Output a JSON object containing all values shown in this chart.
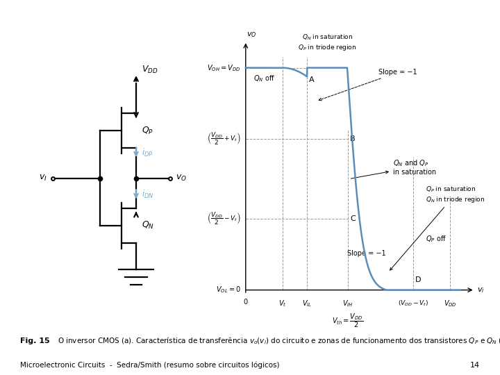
{
  "bg_color": "#ffffff",
  "footer": "Microelectronic Circuits  -  Sedra/Smith (resumo sobre circuitos lógicos)",
  "page_number": "14",
  "circuit": {
    "vdd_label": "$V_{DD}$",
    "qp_label": "$Q_P$",
    "qn_label": "$Q_N$",
    "vi_label": "$v_I$",
    "vo_label": "$v_O$",
    "idp_label": "$i_{DP}$",
    "idn_label": "$i_{DN}$",
    "arrow_color": "#7aabcc"
  },
  "graph": {
    "xlabel": "$v_i$",
    "ylabel": "$v_O$",
    "voh_label": "$V_{OH} = V_{DD}$",
    "vol_label": "$V_{OL} = 0$",
    "vt_label": "$V_t$",
    "vil_label": "$V_{IL}$",
    "vih_label": "$V_{IH}$",
    "vdm_vt_label": "$(V_{DD} - V_t)$",
    "vdd_tick_label": "$V_{DD}$",
    "vth_label": "$V_{th} = \\frac{V_{DD}}{2}$",
    "curve_color": "#5b8db8",
    "dashed_color": "#999999",
    "Vt": 0.18,
    "Vil": 0.3,
    "Vih": 0.5,
    "Vth": 0.5,
    "Vdm_Vt": 0.82,
    "VDD": 1.0
  }
}
